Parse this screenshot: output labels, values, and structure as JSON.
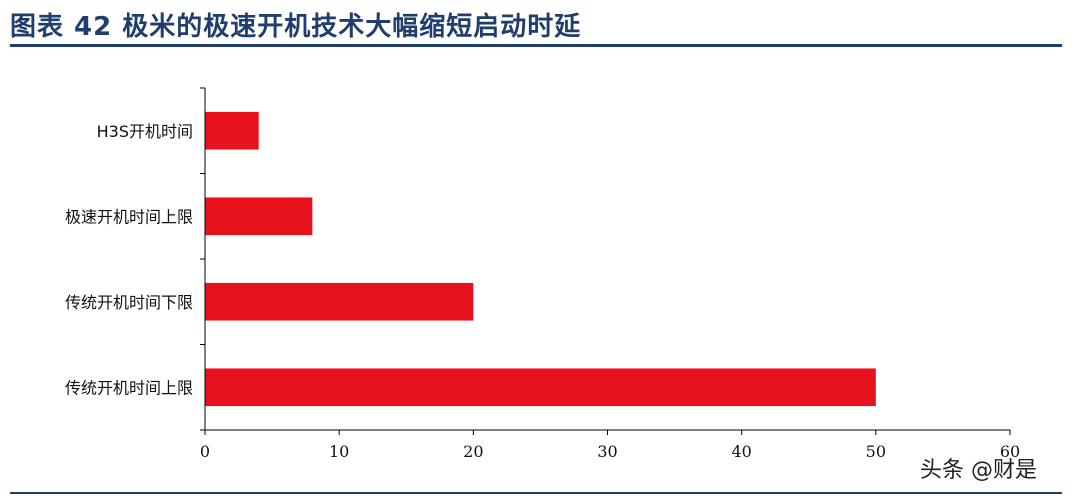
{
  "header": {
    "title": "图表 42    极米的极速开机技术大幅缩短启动时延"
  },
  "colors": {
    "bar": "#e8111e",
    "axis": "#000000",
    "rule": "#1f3e6e"
  },
  "watermark": "头条 @财是",
  "chart_data": {
    "type": "bar",
    "orientation": "horizontal",
    "categories": [
      "H3S开机时间",
      "极速开机时间上限",
      "传统开机时间下限",
      "传统开机时间上限"
    ],
    "values": [
      4,
      8,
      20,
      50
    ],
    "xlim": [
      0,
      60
    ],
    "xticks": [
      0,
      10,
      20,
      30,
      40,
      50,
      60
    ],
    "grid": false,
    "legend": "none"
  }
}
